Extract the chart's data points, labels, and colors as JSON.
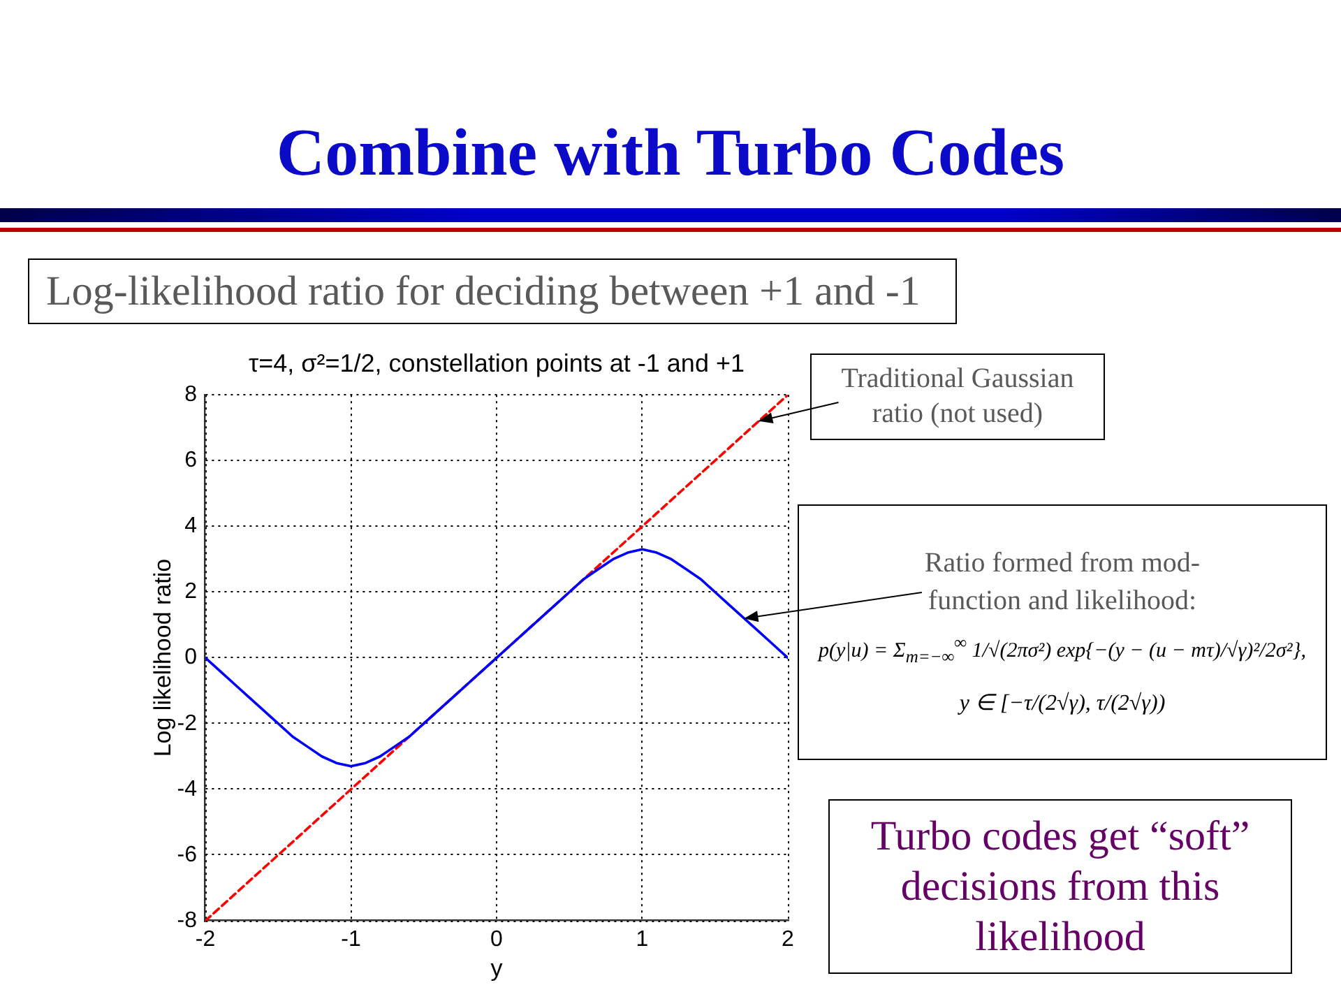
{
  "chart_data": {
    "type": "line",
    "title": "Combine with Turbo Codes",
    "subtitle": "τ=4, σ²=1/2, constellation points at -1 and +1",
    "xlabel": "y",
    "ylabel": "Log likelihood ratio",
    "series": [
      {
        "color": "#0000ff",
        "line_style": "solid",
        "x": [
          -2,
          -1.9,
          -1.8,
          -1.7,
          -1.6,
          -1.5,
          -1.4,
          -1.3,
          -1.2,
          -1.1,
          -1,
          -0.9,
          -0.8,
          -0.7,
          -0.6,
          -0.5,
          -0.4,
          -0.3,
          -0.2,
          -0.1,
          0,
          0.1,
          0.2,
          0.3,
          0.4,
          0.5,
          0.6,
          0.7,
          0.8,
          0.9,
          1,
          1.1,
          1.2,
          1.3,
          1.4,
          1.5,
          1.6,
          1.7,
          1.8,
          1.9,
          2
        ],
        "values": [
          0,
          -0.4,
          -0.8,
          -1.2,
          -1.6,
          -2.0,
          -2.4,
          -2.7,
          -3.0,
          -3.2,
          -3.3,
          -3.2,
          -3.0,
          -2.7,
          -2.4,
          -2.0,
          -1.6,
          -1.2,
          -0.8,
          -0.4,
          0,
          0.4,
          0.8,
          1.2,
          1.6,
          2.0,
          2.4,
          2.7,
          3.0,
          3.2,
          3.3,
          3.2,
          3.0,
          2.7,
          2.4,
          2.0,
          1.6,
          1.2,
          0.8,
          0.4,
          0
        ]
      },
      {
        "color": "#ff0000",
        "line_style": "dashed",
        "x": [
          -2,
          2
        ],
        "values": [
          -8,
          8
        ]
      }
    ],
    "xlim": [
      -2,
      2
    ],
    "xticks": [
      -2,
      -1,
      0,
      1,
      2
    ],
    "ylim": [
      -8,
      8
    ],
    "yticks": [
      -8,
      -6,
      -4,
      -2,
      0,
      2,
      4,
      6,
      8
    ],
    "grid": true,
    "annotations": [
      "Log-likelihood ratio for deciding between +1 and -1",
      {
        "text": "Traditional Gaussian ratio (not used)",
        "x": 1.8,
        "y": 7.2
      },
      {
        "text": "Ratio formed from mod-function and likelihood:",
        "x": 1.7,
        "y": 1.2
      },
      "p(y|u) = Σ$_{m=−∞}$$^{∞}$ 1/√(2πσ²) exp{−(y − (u − mτ)/√γ)²/2σ²},",
      "y ∈ [−τ/(2√γ), τ/(2√γ))",
      "Turbo codes get “soft” decisions from this likelihood"
    ]
  }
}
